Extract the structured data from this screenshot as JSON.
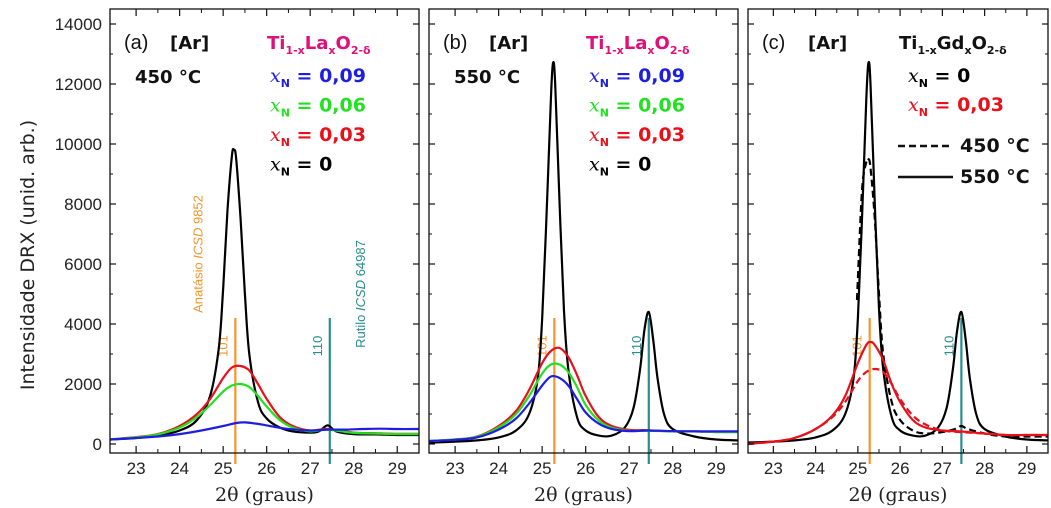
{
  "figure": {
    "ylabel": "Intensidade DRX (unid. arb.)",
    "xlabel": "2θ (graus)",
    "yticks": [
      "0",
      "2000",
      "4000",
      "6000",
      "8000",
      "10000",
      "12000",
      "14000"
    ],
    "xticks": [
      "23",
      "24",
      "25",
      "26",
      "27",
      "28",
      "29"
    ],
    "colors": {
      "black": "#000000",
      "red": "#e8101a",
      "green": "#22e022",
      "blue": "#1e1ee0",
      "magenta": "#e0107a",
      "orange": "#f5952a",
      "teal": "#2a8c8c"
    }
  },
  "chart_data": [
    {
      "type": "line",
      "panel": "(a)",
      "atmosphere": "[Ar]",
      "temperature": "450 °C",
      "compound": {
        "base": "Ti",
        "sub1": "1-x",
        "mid": "La",
        "sub2": "x",
        "end": "O",
        "sub3": "2-δ"
      },
      "xlim": [
        22.4,
        29.5
      ],
      "ylim": [
        -300,
        14500
      ],
      "legend": [
        {
          "var": "x",
          "sub": "N",
          "text": " = 0,09",
          "color": "#1e1ee0"
        },
        {
          "var": "x",
          "sub": "N",
          "text": " = 0,06",
          "color": "#22e022"
        },
        {
          "var": "x",
          "sub": "N",
          "text": " = 0,03",
          "color": "#e8101a"
        },
        {
          "var": "x",
          "sub": "N",
          "text": " = 0",
          "color": "#000000"
        }
      ],
      "series": [
        {
          "name": "x_N = 0",
          "color": "#000000",
          "style": "solid",
          "x": [
            22.4,
            23.0,
            23.5,
            24.0,
            24.4,
            24.7,
            24.9,
            25.0,
            25.1,
            25.2,
            25.25,
            25.3,
            25.4,
            25.5,
            25.6,
            25.8,
            26.0,
            26.3,
            26.6,
            27.0,
            27.2,
            27.4,
            27.6,
            28.0,
            28.5,
            29.0,
            29.5
          ],
          "y": [
            150,
            200,
            280,
            450,
            800,
            1600,
            3200,
            5200,
            7800,
            9600,
            9800,
            9500,
            7500,
            5000,
            3000,
            1400,
            850,
            550,
            420,
            380,
            420,
            620,
            420,
            330,
            320,
            300,
            300
          ]
        },
        {
          "name": "x_N = 0,03",
          "color": "#e8101a",
          "style": "solid",
          "x": [
            22.4,
            23.0,
            23.5,
            24.0,
            24.4,
            24.7,
            25.0,
            25.2,
            25.4,
            25.6,
            25.8,
            26.0,
            26.3,
            26.6,
            27.0,
            27.4,
            28.0,
            28.5,
            29.0,
            29.5
          ],
          "y": [
            150,
            230,
            330,
            600,
            1000,
            1500,
            2200,
            2550,
            2600,
            2450,
            2000,
            1500,
            900,
            600,
            450,
            500,
            380,
            360,
            340,
            340
          ]
        },
        {
          "name": "x_N = 0,06",
          "color": "#22e022",
          "style": "solid",
          "x": [
            22.4,
            23.0,
            23.5,
            24.0,
            24.4,
            24.7,
            25.0,
            25.2,
            25.4,
            25.6,
            25.8,
            26.0,
            26.3,
            26.6,
            27.0,
            27.4,
            28.0,
            28.5,
            29.0,
            29.5
          ],
          "y": [
            150,
            220,
            320,
            550,
            900,
            1300,
            1750,
            1950,
            2000,
            1900,
            1600,
            1250,
            800,
            550,
            420,
            480,
            370,
            350,
            330,
            330
          ]
        },
        {
          "name": "x_N = 0,09",
          "color": "#1e1ee0",
          "style": "solid",
          "x": [
            22.4,
            23.0,
            23.5,
            24.0,
            24.5,
            25.0,
            25.3,
            25.5,
            25.8,
            26.0,
            26.3,
            26.6,
            27.0,
            27.4,
            27.8,
            28.2,
            28.6,
            29.0,
            29.5
          ],
          "y": [
            150,
            200,
            250,
            330,
            450,
            600,
            700,
            720,
            670,
            620,
            540,
            490,
            450,
            480,
            480,
            500,
            510,
            500,
            500
          ]
        }
      ],
      "reference_lines": [
        {
          "x": 25.28,
          "height": 4200,
          "color": "#f5952a",
          "label": "101"
        },
        {
          "x": 27.45,
          "height": 4200,
          "color": "#2a8c8c",
          "label": "110"
        }
      ],
      "annotations": [
        {
          "text_plain": "Anatásio ",
          "text_italic": "ICSD",
          "text_after": " 9852",
          "color": "#f5952a"
        },
        {
          "text_plain": "Rutilo ",
          "text_italic": "ICSD",
          "text_after": " 64987",
          "color": "#2a8c8c"
        }
      ]
    },
    {
      "type": "line",
      "panel": "(b)",
      "atmosphere": "[Ar]",
      "temperature": "550 °C",
      "compound": {
        "base": "Ti",
        "sub1": "1-x",
        "mid": "La",
        "sub2": "x",
        "end": "O",
        "sub3": "2-δ"
      },
      "xlim": [
        22.4,
        29.5
      ],
      "ylim": [
        -300,
        14500
      ],
      "legend": [
        {
          "var": "x",
          "sub": "N",
          "text": " = 0,09",
          "color": "#1e1ee0"
        },
        {
          "var": "x",
          "sub": "N",
          "text": " = 0,06",
          "color": "#22e022"
        },
        {
          "var": "x",
          "sub": "N",
          "text": " = 0,03",
          "color": "#e8101a"
        },
        {
          "var": "x",
          "sub": "N",
          "text": " = 0",
          "color": "#000000"
        }
      ],
      "series": [
        {
          "name": "x_N = 0",
          "color": "#000000",
          "style": "solid",
          "x": [
            22.4,
            23.0,
            23.5,
            24.0,
            24.4,
            24.7,
            24.9,
            25.0,
            25.1,
            25.2,
            25.25,
            25.3,
            25.4,
            25.5,
            25.6,
            25.8,
            26.0,
            26.3,
            26.6,
            26.9,
            27.1,
            27.25,
            27.35,
            27.45,
            27.55,
            27.65,
            27.8,
            28.0,
            28.5,
            29.0,
            29.5
          ],
          "y": [
            50,
            80,
            120,
            220,
            450,
            1000,
            2200,
            4200,
            7600,
            11500,
            12700,
            12000,
            8000,
            4500,
            2500,
            900,
            450,
            280,
            280,
            550,
            1200,
            2500,
            3800,
            4400,
            3500,
            2200,
            1000,
            500,
            250,
            150,
            120
          ]
        },
        {
          "name": "x_N = 0,03",
          "color": "#e8101a",
          "style": "solid",
          "x": [
            22.4,
            23.0,
            23.5,
            24.0,
            24.4,
            24.7,
            25.0,
            25.2,
            25.4,
            25.6,
            25.8,
            26.0,
            26.3,
            26.6,
            27.0,
            27.4,
            28.0,
            28.5,
            29.0,
            29.5
          ],
          "y": [
            100,
            150,
            250,
            600,
            1100,
            1800,
            2700,
            3100,
            3200,
            2900,
            2300,
            1600,
            900,
            600,
            470,
            460,
            420,
            420,
            400,
            400
          ]
        },
        {
          "name": "x_N = 0,06",
          "color": "#22e022",
          "style": "solid",
          "x": [
            22.4,
            23.0,
            23.5,
            24.0,
            24.4,
            24.7,
            25.0,
            25.2,
            25.4,
            25.6,
            25.8,
            26.0,
            26.3,
            26.6,
            27.0,
            27.4,
            28.0,
            28.5,
            29.0,
            29.5
          ],
          "y": [
            100,
            150,
            240,
            550,
            1000,
            1600,
            2350,
            2650,
            2650,
            2400,
            1900,
            1300,
            780,
            540,
            440,
            440,
            420,
            420,
            400,
            400
          ]
        },
        {
          "name": "x_N = 0,09",
          "color": "#1e1ee0",
          "style": "solid",
          "x": [
            22.4,
            23.0,
            23.5,
            24.0,
            24.4,
            24.7,
            25.0,
            25.2,
            25.4,
            25.6,
            25.8,
            26.0,
            26.3,
            26.6,
            27.0,
            27.4,
            28.0,
            28.5,
            29.0,
            29.5
          ],
          "y": [
            100,
            140,
            220,
            480,
            850,
            1350,
            1950,
            2250,
            2200,
            1950,
            1500,
            1050,
            680,
            500,
            430,
            450,
            430,
            420,
            420,
            420
          ]
        }
      ],
      "reference_lines": [
        {
          "x": 25.28,
          "height": 4200,
          "color": "#f5952a",
          "label": "101"
        },
        {
          "x": 27.45,
          "height": 4200,
          "color": "#2a8c8c",
          "label": "110"
        }
      ]
    },
    {
      "type": "line",
      "panel": "(c)",
      "atmosphere": "[Ar]",
      "compound": {
        "base": "Ti",
        "sub1": "1-x",
        "mid": "Gd",
        "sub2": "x",
        "end": "O",
        "sub3": "2-δ"
      },
      "xlim": [
        22.4,
        29.5
      ],
      "ylim": [
        -300,
        14500
      ],
      "legend": [
        {
          "var": "x",
          "sub": "N",
          "text": " = 0",
          "color": "#000000"
        },
        {
          "var": "x",
          "sub": "N",
          "text": " = 0,03",
          "color": "#e8101a"
        }
      ],
      "style_legend": [
        {
          "label": "450 °C",
          "style": "dashed"
        },
        {
          "label": "550 °C",
          "style": "solid"
        }
      ],
      "series": [
        {
          "name": "x_N = 0, 450 °C",
          "color": "#000000",
          "style": "dashed",
          "x": [
            24.98,
            25.0,
            25.1,
            25.2,
            25.25,
            25.3,
            25.4,
            25.5,
            25.6,
            25.8,
            26.0,
            26.3,
            26.6,
            27.0,
            27.3,
            27.45,
            27.6,
            28.0,
            28.5,
            29.0,
            29.5
          ],
          "y": [
            4800,
            5500,
            8500,
            9400,
            9500,
            9200,
            7500,
            5000,
            3000,
            1400,
            800,
            450,
            350,
            400,
            500,
            600,
            500,
            350,
            250,
            250,
            250
          ]
        },
        {
          "name": "x_N = 0, 550 °C",
          "color": "#000000",
          "style": "solid",
          "x": [
            22.4,
            23.0,
            23.5,
            24.0,
            24.4,
            24.7,
            24.9,
            25.0,
            25.1,
            25.2,
            25.25,
            25.3,
            25.4,
            25.5,
            25.6,
            25.8,
            26.0,
            26.3,
            26.6,
            26.9,
            27.1,
            27.25,
            27.35,
            27.45,
            27.55,
            27.65,
            27.8,
            28.0,
            28.5,
            29.0,
            29.5
          ],
          "y": [
            50,
            80,
            120,
            220,
            450,
            1000,
            2200,
            4200,
            7600,
            11500,
            12700,
            12000,
            8000,
            4500,
            2500,
            900,
            450,
            280,
            280,
            550,
            1200,
            2500,
            3800,
            4400,
            3500,
            2200,
            1000,
            500,
            250,
            150,
            120
          ]
        },
        {
          "name": "x_N = 0,03, 450 °C",
          "color": "#e8101a",
          "style": "dashed",
          "x": [
            22.4,
            23.0,
            23.5,
            24.0,
            24.4,
            24.7,
            25.0,
            25.2,
            25.4,
            25.6,
            25.8,
            26.0,
            26.3,
            26.6,
            27.0,
            27.4,
            28.0,
            28.5,
            29.0,
            29.5
          ],
          "y": [
            0,
            80,
            200,
            500,
            900,
            1400,
            2100,
            2400,
            2500,
            2400,
            2000,
            1500,
            950,
            650,
            450,
            400,
            350,
            300,
            300,
            300
          ]
        },
        {
          "name": "x_N = 0,03, 550 °C",
          "color": "#e8101a",
          "style": "solid",
          "x": [
            22.4,
            23.0,
            23.5,
            24.0,
            24.4,
            24.7,
            25.0,
            25.2,
            25.3,
            25.4,
            25.6,
            25.8,
            26.0,
            26.3,
            26.6,
            27.0,
            27.4,
            28.0,
            28.5,
            29.0,
            29.5
          ],
          "y": [
            0,
            80,
            200,
            500,
            950,
            1600,
            2700,
            3300,
            3400,
            3300,
            2800,
            2000,
            1400,
            800,
            550,
            450,
            420,
            350,
            300,
            300,
            300
          ]
        }
      ],
      "reference_lines": [
        {
          "x": 25.28,
          "height": 4200,
          "color": "#f5952a",
          "label": "101"
        },
        {
          "x": 27.45,
          "height": 4200,
          "color": "#2a8c8c",
          "label": "110"
        }
      ]
    }
  ]
}
